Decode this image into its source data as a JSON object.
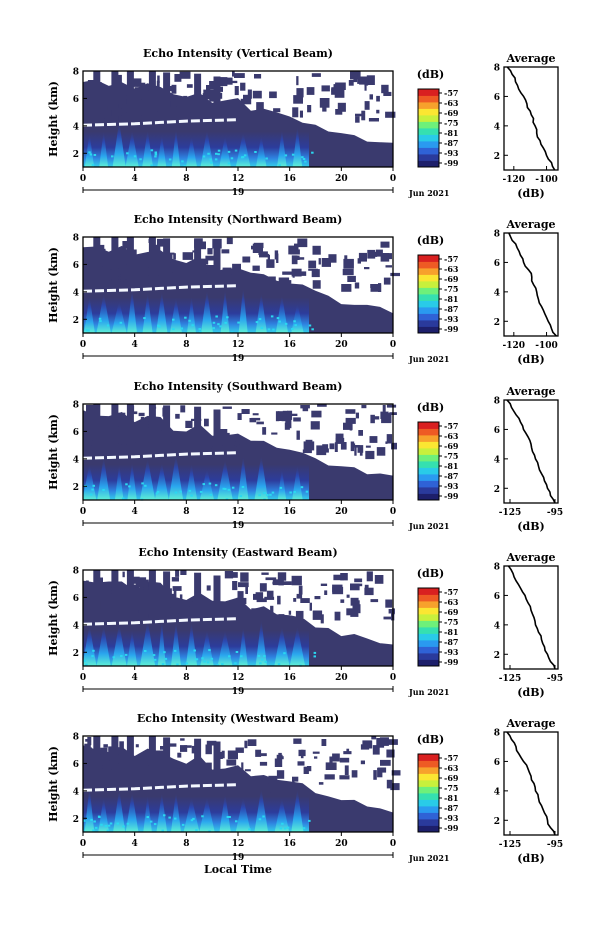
{
  "colorbar": {
    "unit_label": "(dB)",
    "ticks": [
      "-57",
      "-63",
      "-69",
      "-75",
      "-81",
      "-87",
      "-93",
      "-99"
    ],
    "colors": [
      "#1d1f6b",
      "#2a3a9c",
      "#2f62d6",
      "#2a9af0",
      "#29cbe8",
      "#35e0b0",
      "#6ef07a",
      "#c8f03c",
      "#fbe632",
      "#f7a12c",
      "#ee5a24",
      "#d92020"
    ],
    "background": "#3a3a6e",
    "bright_layer": "#f4f8ff"
  },
  "shared": {
    "x_ticks": [
      "0",
      "4",
      "8",
      "12",
      "16",
      "20",
      "0"
    ],
    "date_day": "19",
    "date_month_year": "Jun 2021",
    "height_axis_label": "Height (km)",
    "y_ticks": [
      "2",
      "4",
      "6",
      "8"
    ],
    "average_title": "Average",
    "average_xlabel": "(dB)",
    "xlabel_bottom": "Local Time"
  },
  "chart_data": [
    {
      "type": "heatmap",
      "title": "Echo Intensity (Vertical Beam)",
      "x_range_hours": [
        0,
        24
      ],
      "y_range_km": [
        1,
        8
      ],
      "ylabel": "Height (km)",
      "colorbar_range_db": [
        -99,
        -57
      ],
      "average_profile": {
        "x_ticks": [
          "-120",
          "-100"
        ],
        "xlim": [
          -126,
          -93
        ],
        "height_km": [
          8,
          7.5,
          7,
          6.5,
          6,
          5.5,
          5,
          4.5,
          4,
          3.5,
          3,
          2.5,
          2,
          1.5,
          1
        ],
        "db": [
          -124,
          -121,
          -119,
          -117,
          -114,
          -112,
          -110,
          -108,
          -107,
          -106,
          -104,
          -102,
          -100,
          -97,
          -95
        ]
      }
    },
    {
      "type": "heatmap",
      "title": "Echo Intensity (Northward Beam)",
      "x_range_hours": [
        0,
        24
      ],
      "y_range_km": [
        1,
        8
      ],
      "ylabel": "Height (km)",
      "colorbar_range_db": [
        -99,
        -57
      ],
      "average_profile": {
        "x_ticks": [
          "-120",
          "-100"
        ],
        "xlim": [
          -126,
          -93
        ],
        "height_km": [
          8,
          7.5,
          7,
          6.5,
          6,
          5.5,
          5,
          4.5,
          4,
          3.5,
          3,
          2.5,
          2,
          1.5,
          1
        ],
        "db": [
          -123,
          -121,
          -118,
          -116,
          -114,
          -111,
          -109,
          -108,
          -106,
          -105,
          -103,
          -101,
          -99,
          -97,
          -94
        ]
      }
    },
    {
      "type": "heatmap",
      "title": "Echo Intensity (Southward Beam)",
      "x_range_hours": [
        0,
        24
      ],
      "y_range_km": [
        1,
        8
      ],
      "ylabel": "Height (km)",
      "colorbar_range_db": [
        -99,
        -57
      ],
      "average_profile": {
        "x_ticks": [
          "-125",
          "-95"
        ],
        "xlim": [
          -129,
          -93
        ],
        "height_km": [
          8,
          7.5,
          7,
          6.5,
          6,
          5.5,
          5,
          4.5,
          4,
          3.5,
          3,
          2.5,
          2,
          1.5,
          1
        ],
        "db": [
          -127,
          -124,
          -121,
          -118,
          -116,
          -113,
          -111,
          -110,
          -108,
          -106,
          -104,
          -102,
          -100,
          -98,
          -95
        ]
      }
    },
    {
      "type": "heatmap",
      "title": "Echo Intensity (Eastward Beam)",
      "x_range_hours": [
        0,
        24
      ],
      "y_range_km": [
        1,
        8
      ],
      "ylabel": "Height (km)",
      "colorbar_range_db": [
        -99,
        -57
      ],
      "average_profile": {
        "x_ticks": [
          "-125",
          "-95"
        ],
        "xlim": [
          -129,
          -93
        ],
        "height_km": [
          8,
          7.5,
          7,
          6.5,
          6,
          5.5,
          5,
          4.5,
          4,
          3.5,
          3,
          2.5,
          2,
          1.5,
          1
        ],
        "db": [
          -126,
          -123,
          -121,
          -118,
          -115,
          -113,
          -111,
          -109,
          -108,
          -106,
          -104,
          -102,
          -100,
          -98,
          -95
        ]
      }
    },
    {
      "type": "heatmap",
      "title": "Echo Intensity (Westward Beam)",
      "x_range_hours": [
        0,
        24
      ],
      "y_range_km": [
        1,
        8
      ],
      "ylabel": "Height (km)",
      "xlabel": "Local Time",
      "colorbar_range_db": [
        -99,
        -57
      ],
      "average_profile": {
        "x_ticks": [
          "-125",
          "-95"
        ],
        "xlim": [
          -129,
          -93
        ],
        "height_km": [
          8,
          7.5,
          7,
          6.5,
          6,
          5.5,
          5,
          4.5,
          4,
          3.5,
          3,
          2.5,
          2,
          1.5,
          1
        ],
        "db": [
          -127,
          -124,
          -121,
          -119,
          -116,
          -113,
          -111,
          -109,
          -108,
          -106,
          -104,
          -102,
          -100,
          -98,
          -95
        ]
      }
    }
  ]
}
